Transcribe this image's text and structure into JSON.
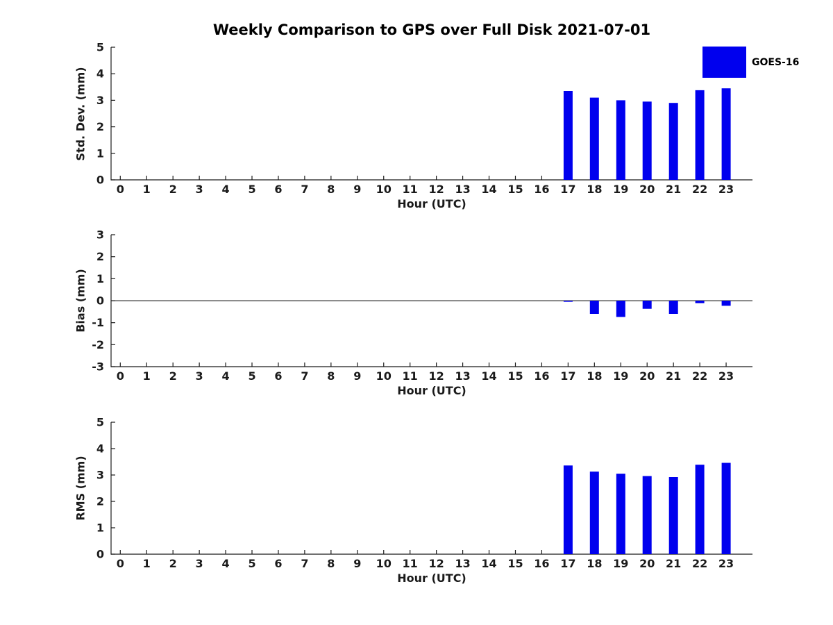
{
  "title": "Weekly Comparison to GPS over Full Disk 2021-07-01",
  "legend": {
    "label": "GOES-16",
    "color": "#0000EE"
  },
  "chart_data": [
    {
      "type": "bar",
      "title": "Weekly Comparison to GPS over Full Disk 2021-07-01",
      "xlabel": "Hour (UTC)",
      "ylabel": "Std. Dev. (mm)",
      "categories": [
        17,
        18,
        19,
        20,
        21,
        22,
        23
      ],
      "series": [
        {
          "name": "GOES-16",
          "values": [
            3.35,
            3.1,
            3.0,
            2.95,
            2.9,
            3.38,
            3.45
          ]
        }
      ],
      "bar_color": "#0000EE",
      "xlim": [
        -0.35,
        24
      ],
      "ylim": [
        0,
        5
      ],
      "xticks": [
        0,
        1,
        2,
        3,
        4,
        5,
        6,
        7,
        8,
        9,
        10,
        11,
        12,
        13,
        14,
        15,
        16,
        17,
        18,
        19,
        20,
        21,
        22,
        23
      ],
      "yticks": [
        0,
        1,
        2,
        3,
        4,
        5
      ],
      "zero_line": false,
      "grid": false,
      "legend_position": "upper-right-outside"
    },
    {
      "type": "bar",
      "title": "",
      "xlabel": "Hour (UTC)",
      "ylabel": "Bias (mm)",
      "categories": [
        17,
        18,
        19,
        20,
        21,
        22,
        23
      ],
      "series": [
        {
          "name": "GOES-16",
          "values": [
            -0.05,
            -0.6,
            -0.74,
            -0.37,
            -0.6,
            -0.11,
            -0.23
          ]
        }
      ],
      "bar_color": "#0000EE",
      "xlim": [
        -0.35,
        24
      ],
      "ylim": [
        -3,
        3
      ],
      "xticks": [
        0,
        1,
        2,
        3,
        4,
        5,
        6,
        7,
        8,
        9,
        10,
        11,
        12,
        13,
        14,
        15,
        16,
        17,
        18,
        19,
        20,
        21,
        22,
        23
      ],
      "yticks": [
        -3,
        -2,
        -1,
        0,
        1,
        2,
        3
      ],
      "zero_line": true,
      "grid": false
    },
    {
      "type": "bar",
      "title": "",
      "xlabel": "Hour (UTC)",
      "ylabel": "RMS (mm)",
      "categories": [
        17,
        18,
        19,
        20,
        21,
        22,
        23
      ],
      "series": [
        {
          "name": "GOES-16",
          "values": [
            3.36,
            3.13,
            3.05,
            2.96,
            2.92,
            3.39,
            3.46
          ]
        }
      ],
      "bar_color": "#0000EE",
      "xlim": [
        -0.35,
        24
      ],
      "ylim": [
        0,
        5
      ],
      "xticks": [
        0,
        1,
        2,
        3,
        4,
        5,
        6,
        7,
        8,
        9,
        10,
        11,
        12,
        13,
        14,
        15,
        16,
        17,
        18,
        19,
        20,
        21,
        22,
        23
      ],
      "yticks": [
        0,
        1,
        2,
        3,
        4,
        5
      ],
      "zero_line": false,
      "grid": false
    }
  ]
}
